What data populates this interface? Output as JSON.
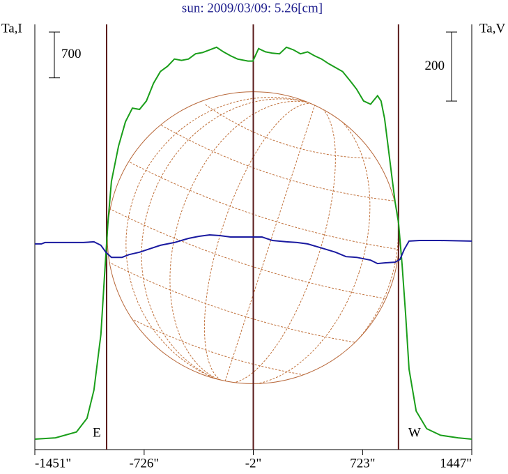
{
  "chart_data": {
    "type": "line",
    "title": "sun: 2009/03/09: 5.26[cm]",
    "y_label": "Ta,I",
    "y2_label": "Ta,V",
    "xlim": [
      -1451,
      1447
    ],
    "xticks": [
      {
        "value": -1451,
        "label": "-1451\""
      },
      {
        "value": -726,
        "label": "-726\""
      },
      {
        "value": -2,
        "label": "-2\""
      },
      {
        "value": 723,
        "label": "723\""
      },
      {
        "value": 1447,
        "label": "1447\""
      }
    ],
    "ylim": [
      0,
      6500
    ],
    "y2lim": [
      -616,
      616
    ],
    "scale_bars": [
      {
        "value": 700,
        "axis": "y"
      },
      {
        "value": 200,
        "axis": "y2"
      }
    ],
    "vlines": [
      -975,
      -2,
      961
    ],
    "annotations": [
      "E",
      "W"
    ],
    "grid": false,
    "series": [
      {
        "name": "Ta,I",
        "color": "#1a9e1a",
        "axis": "y",
        "x": [
          -1451,
          -1314,
          -1175,
          -1105,
          -1059,
          -1013,
          -990,
          -966,
          -943,
          -896,
          -850,
          -804,
          -757,
          -711,
          -664,
          -618,
          -571,
          -525,
          -478,
          -432,
          -385,
          -339,
          -292,
          -246,
          -200,
          -153,
          -107,
          -37,
          -5,
          33,
          79,
          125,
          172,
          218,
          265,
          311,
          358,
          404,
          451,
          497,
          543,
          590,
          636,
          683,
          729,
          776,
          822,
          845,
          869,
          892,
          915,
          938,
          961,
          985,
          1008,
          1031,
          1078,
          1148,
          1240,
          1356,
          1447
        ],
        "values": [
          160,
          180,
          270,
          480,
          910,
          1760,
          2610,
          3470,
          4100,
          4640,
          5010,
          5220,
          5200,
          5330,
          5600,
          5780,
          5860,
          5970,
          5950,
          5970,
          6050,
          6070,
          6110,
          6150,
          6080,
          6020,
          5970,
          5940,
          5940,
          6130,
          6080,
          6060,
          6050,
          6150,
          6110,
          6050,
          6080,
          6020,
          5970,
          5900,
          5840,
          5780,
          5650,
          5510,
          5330,
          5280,
          5410,
          5330,
          5060,
          4640,
          4210,
          3790,
          3470,
          2830,
          2080,
          1230,
          590,
          320,
          220,
          180,
          160
        ]
      },
      {
        "name": "Ta,V",
        "color": "#1a1aa0",
        "axis": "y2",
        "x": [
          -1451,
          -1407,
          -1384,
          -1129,
          -1059,
          -1013,
          -980,
          -943,
          -873,
          -827,
          -757,
          -687,
          -618,
          -525,
          -432,
          -362,
          -292,
          -223,
          -153,
          -84,
          -5,
          56,
          125,
          218,
          288,
          358,
          451,
          543,
          613,
          683,
          776,
          822,
          869,
          938,
          971,
          999,
          1031,
          1101,
          1240,
          1447
        ],
        "values": [
          -20,
          -20,
          -16,
          -16,
          -14,
          -24,
          -44,
          -59,
          -59,
          -51,
          -44,
          -34,
          -24,
          -16,
          -4,
          2,
          6,
          4,
          0,
          0,
          0,
          0,
          -10,
          -14,
          -16,
          -20,
          -32,
          -44,
          -57,
          -59,
          -67,
          -77,
          -75,
          -73,
          -65,
          -36,
          -12,
          -10,
          -10,
          -12
        ]
      }
    ]
  }
}
